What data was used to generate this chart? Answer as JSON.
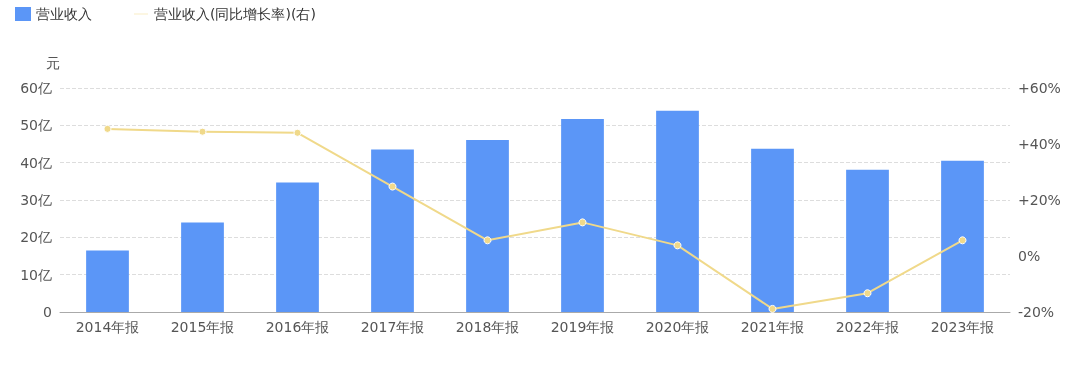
{
  "chart_data": {
    "type": "bar",
    "ylabel": "元",
    "categories": [
      "2014年报",
      "2015年报",
      "2016年报",
      "2017年报",
      "2018年报",
      "2019年报",
      "2020年报",
      "2021年报",
      "2022年报",
      "2023年报"
    ],
    "series": [
      {
        "name": "营业收入",
        "color": "#5b96f7",
        "values": [
          16.5,
          24,
          34.7,
          43.5,
          46.1,
          51.7,
          53.9,
          43.7,
          38.1,
          40.5
        ]
      },
      {
        "name": "营业收入(同比增长率)(右)",
        "type": "line",
        "axis": "y2",
        "color": "#f0d98a",
        "marker": "circle",
        "values": [
          45.4,
          44.4,
          44,
          24.8,
          5.6,
          12,
          3.8,
          -18.9,
          -13.3,
          5.6
        ]
      }
    ],
    "ylim": [
      0,
      60
    ],
    "yticks": [
      0,
      {
        "value": 10,
        "label": "10亿"
      },
      {
        "value": 20,
        "label": "20亿"
      },
      {
        "value": 30,
        "label": "30亿"
      },
      {
        "value": 40,
        "label": "40亿"
      },
      {
        "value": 50,
        "label": "50亿"
      },
      {
        "value": 60,
        "label": "60亿"
      }
    ],
    "y2lim": [
      -20,
      60
    ],
    "y2ticks": [
      {
        "value": -20,
        "label": "-20%"
      },
      {
        "value": 0,
        "label": "0%"
      },
      {
        "value": 20,
        "label": "+20%"
      },
      {
        "value": 40,
        "label": "+40%"
      },
      {
        "value": 60,
        "label": "+60%"
      }
    ],
    "grid": "y",
    "legend": "top left"
  }
}
